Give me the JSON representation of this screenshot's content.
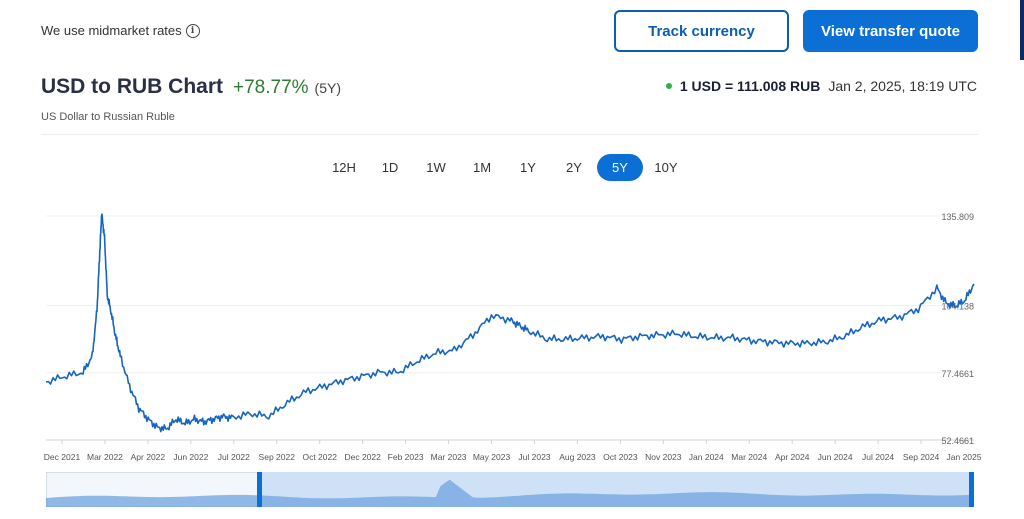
{
  "header": {
    "note": "We use midmarket rates",
    "track_label": "Track currency",
    "quote_label": "View transfer quote"
  },
  "title_block": {
    "title": "USD to RUB Chart",
    "change": "+78.77%",
    "period": "(5Y)",
    "subtitle": "US Dollar to Russian Ruble"
  },
  "rate": {
    "value": "1 USD = 111.008 RUB",
    "time": "Jan 2, 2025, 18:19 UTC",
    "status_color": "#2bb34a"
  },
  "tabs": [
    {
      "label": "12H",
      "active": false
    },
    {
      "label": "1D",
      "active": false
    },
    {
      "label": "1W",
      "active": false
    },
    {
      "label": "1M",
      "active": false
    },
    {
      "label": "1Y",
      "active": false
    },
    {
      "label": "2Y",
      "active": false
    },
    {
      "label": "5Y",
      "active": true
    },
    {
      "label": "10Y",
      "active": false
    }
  ],
  "colors": {
    "accent": "#0b6fd6",
    "line": "#1565c0",
    "positive": "#2e7d32"
  },
  "chart_data": {
    "type": "line",
    "ylim": [
      52.4661,
      135.809
    ],
    "y_tick_labels": [
      "135.809",
      "104.138",
      "77.4661",
      "52.4661"
    ],
    "x_tick_labels": [
      "Dec 2021",
      "Mar 2022",
      "Apr 2022",
      "Jun 2022",
      "Jul 2022",
      "Sep 2022",
      "Oct 2022",
      "Dec 2022",
      "Feb 2023",
      "Mar 2023",
      "May 2023",
      "Jul 2023",
      "Aug 2023",
      "Oct 2023",
      "Nov 2023",
      "Jan 2024",
      "Mar 2024",
      "Apr 2024",
      "Jun 2024",
      "Jul 2024",
      "Sep 2024",
      "Jan 2025"
    ],
    "series": [
      {
        "x": [
          0,
          0.02,
          0.04,
          0.05,
          0.055,
          0.058,
          0.06,
          0.063,
          0.066,
          0.07,
          0.075,
          0.08,
          0.09,
          0.1,
          0.11,
          0.12,
          0.13,
          0.14,
          0.15,
          0.16,
          0.17,
          0.18,
          0.19,
          0.2,
          0.22,
          0.24,
          0.26,
          0.28,
          0.3,
          0.32,
          0.34,
          0.36,
          0.38,
          0.4,
          0.42,
          0.44,
          0.46,
          0.48,
          0.5,
          0.51,
          0.52,
          0.54,
          0.56,
          0.58,
          0.6,
          0.62,
          0.64,
          0.66,
          0.68,
          0.7,
          0.72,
          0.74,
          0.76,
          0.78,
          0.8,
          0.82,
          0.84,
          0.86,
          0.88,
          0.9,
          0.92,
          0.94,
          0.96,
          0.97,
          0.98,
          0.99,
          1.0
        ],
        "y": [
          73.5,
          75.5,
          77,
          83,
          100,
          121,
          134.5,
          126,
          105,
          99,
          90,
          83,
          72,
          64,
          60,
          57,
          56.5,
          60,
          58.5,
          60,
          59,
          60,
          61,
          60.5,
          62,
          61,
          66,
          70,
          72,
          74,
          75.5,
          77,
          77,
          81,
          84,
          85,
          90.5,
          97.5,
          96,
          94,
          92,
          89,
          89,
          89.5,
          90,
          89,
          90,
          90.5,
          91,
          90,
          89.5,
          89.5,
          88.5,
          88,
          87.5,
          87.5,
          88,
          90,
          93.5,
          96,
          97,
          100,
          107.5,
          102,
          101,
          103,
          109
        ]
      }
    ]
  }
}
